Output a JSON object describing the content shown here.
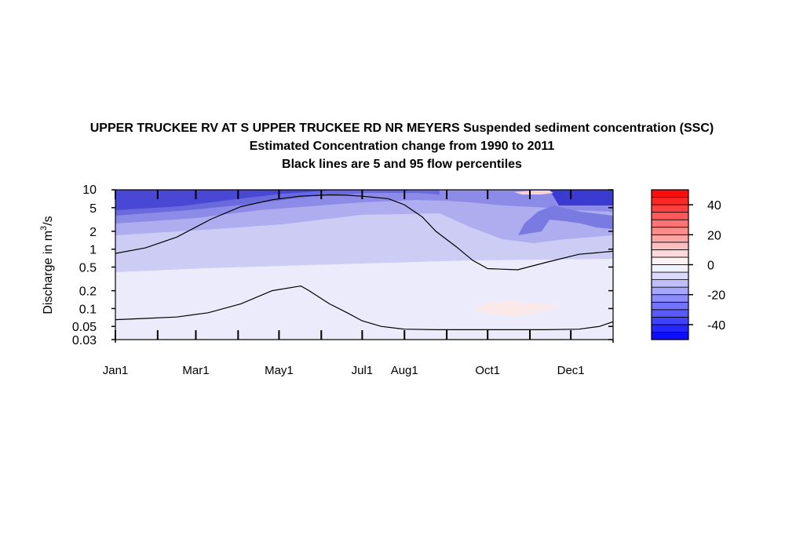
{
  "chart_data": {
    "type": "heatmap",
    "title": "UPPER TRUCKEE RV AT S UPPER TRUCKEE RD NR MEYERS  Suspended sediment concentration (SSC)",
    "subtitle": "Estimated Concentration change from 1990 to 2011",
    "subtitle2": "Black lines are 5 and 95 flow percentiles",
    "ylabel_prefix": "Discharge in m",
    "ylabel_sup": "3",
    "ylabel_suffix": "/s",
    "y_scale": "log",
    "ylim": [
      0.03,
      10
    ],
    "y_ticks": [
      {
        "value": 10,
        "label": "10"
      },
      {
        "value": 5,
        "label": "5"
      },
      {
        "value": 2,
        "label": "2"
      },
      {
        "value": 1,
        "label": "1"
      },
      {
        "value": 0.5,
        "label": "0.5"
      },
      {
        "value": 0.2,
        "label": "0.2"
      },
      {
        "value": 0.1,
        "label": "0.1"
      },
      {
        "value": 0.05,
        "label": "0.05"
      },
      {
        "value": 0.03,
        "label": "0.03"
      }
    ],
    "xlim": [
      0,
      365
    ],
    "x_ticks": [
      {
        "value": 0,
        "label": "Jan1"
      },
      {
        "value": 59,
        "label": "Mar1"
      },
      {
        "value": 120,
        "label": "May1"
      },
      {
        "value": 181,
        "label": "Jul1"
      },
      {
        "value": 212,
        "label": "Aug1"
      },
      {
        "value": 273,
        "label": "Oct1"
      },
      {
        "value": 334,
        "label": "Dec1"
      }
    ],
    "x_minor_ticks": [
      31,
      90,
      151,
      243,
      304
    ],
    "percentile_95": {
      "x": [
        0,
        22,
        45,
        70,
        92,
        115,
        135,
        157,
        170,
        181,
        200,
        212,
        225,
        235,
        250,
        262,
        273,
        295,
        316,
        340,
        365
      ],
      "y": [
        0.85,
        1.05,
        1.6,
        3.2,
        5.2,
        6.8,
        7.8,
        8.2,
        8.1,
        7.8,
        7.1,
        5.6,
        3.5,
        2.0,
        1.1,
        0.65,
        0.47,
        0.45,
        0.6,
        0.82,
        0.92
      ]
    },
    "percentile_5": {
      "x": [
        0,
        20,
        45,
        68,
        92,
        115,
        136,
        142,
        157,
        170,
        181,
        195,
        212,
        235,
        273,
        316,
        340,
        355,
        365
      ],
      "y": [
        0.065,
        0.068,
        0.072,
        0.085,
        0.12,
        0.2,
        0.24,
        0.2,
        0.12,
        0.085,
        0.062,
        0.05,
        0.045,
        0.044,
        0.044,
        0.044,
        0.045,
        0.05,
        0.06
      ],
      "start_y": 0.065
    },
    "colorbar": {
      "levels": [
        -50,
        -45,
        -40,
        -35,
        -30,
        -25,
        -20,
        -15,
        -10,
        -5,
        0,
        5,
        10,
        15,
        20,
        25,
        30,
        35,
        40,
        45,
        50
      ],
      "tick_labels": [
        {
          "value": 40,
          "label": "40"
        },
        {
          "value": 20,
          "label": "20"
        },
        {
          "value": 0,
          "label": "0"
        },
        {
          "value": -20,
          "label": "-20"
        },
        {
          "value": -40,
          "label": "-40"
        }
      ]
    }
  }
}
